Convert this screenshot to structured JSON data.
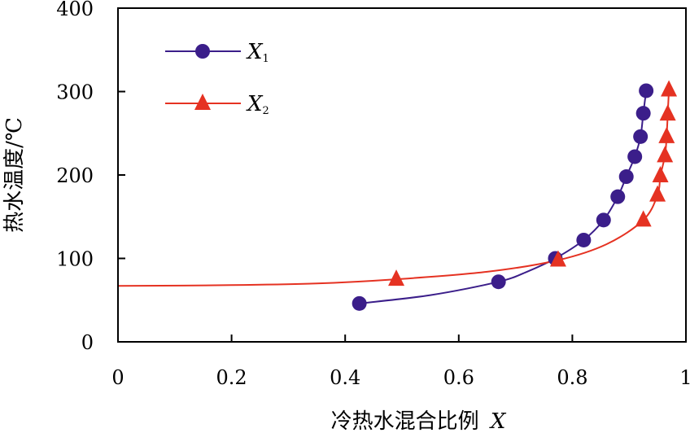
{
  "chart_data": {
    "type": "line",
    "xlabel": "冷热水混合比例",
    "xlabel_var": "X",
    "ylabel": "热水温度/℃",
    "xlim": [
      0,
      1
    ],
    "ylim": [
      0,
      400
    ],
    "xticks": [
      0,
      0.2,
      0.4,
      0.6,
      0.8,
      1
    ],
    "xtick_labels": [
      "0",
      "0.2",
      "0.4",
      "0.6",
      "0.8",
      "1"
    ],
    "yticks": [
      0,
      100,
      200,
      300,
      400
    ],
    "ytick_labels": [
      "0",
      "100",
      "200",
      "300",
      "400"
    ],
    "grid": false,
    "legend_position": "top-left",
    "series": [
      {
        "name": "X1",
        "label_main": "X",
        "label_sub": "1",
        "color": "#3b1e8a",
        "marker": "circle",
        "points": [
          {
            "x": 0.425,
            "y": 46
          },
          {
            "x": 0.67,
            "y": 72
          },
          {
            "x": 0.77,
            "y": 100
          },
          {
            "x": 0.82,
            "y": 122
          },
          {
            "x": 0.855,
            "y": 146
          },
          {
            "x": 0.88,
            "y": 174
          },
          {
            "x": 0.895,
            "y": 198
          },
          {
            "x": 0.91,
            "y": 222
          },
          {
            "x": 0.92,
            "y": 246
          },
          {
            "x": 0.925,
            "y": 274
          },
          {
            "x": 0.93,
            "y": 301
          }
        ],
        "curve": [
          {
            "x": 0.425,
            "y": 46
          },
          {
            "x": 0.55,
            "y": 56
          },
          {
            "x": 0.67,
            "y": 72
          },
          {
            "x": 0.72,
            "y": 84
          },
          {
            "x": 0.77,
            "y": 100
          },
          {
            "x": 0.82,
            "y": 122
          },
          {
            "x": 0.855,
            "y": 146
          },
          {
            "x": 0.88,
            "y": 174
          },
          {
            "x": 0.895,
            "y": 198
          },
          {
            "x": 0.91,
            "y": 222
          },
          {
            "x": 0.92,
            "y": 246
          },
          {
            "x": 0.925,
            "y": 274
          },
          {
            "x": 0.93,
            "y": 301
          }
        ]
      },
      {
        "name": "X2",
        "label_main": "X",
        "label_sub": "2",
        "color": "#e53222",
        "marker": "triangle",
        "points": [
          {
            "x": 0.49,
            "y": 75
          },
          {
            "x": 0.775,
            "y": 98
          },
          {
            "x": 0.925,
            "y": 146
          },
          {
            "x": 0.95,
            "y": 176
          },
          {
            "x": 0.955,
            "y": 199
          },
          {
            "x": 0.963,
            "y": 223
          },
          {
            "x": 0.966,
            "y": 246
          },
          {
            "x": 0.968,
            "y": 273
          },
          {
            "x": 0.97,
            "y": 302
          }
        ],
        "curve": [
          {
            "x": 0,
            "y": 67
          },
          {
            "x": 0.2,
            "y": 68
          },
          {
            "x": 0.35,
            "y": 70
          },
          {
            "x": 0.49,
            "y": 75
          },
          {
            "x": 0.65,
            "y": 84
          },
          {
            "x": 0.775,
            "y": 98
          },
          {
            "x": 0.86,
            "y": 117
          },
          {
            "x": 0.925,
            "y": 146
          },
          {
            "x": 0.95,
            "y": 176
          },
          {
            "x": 0.955,
            "y": 199
          },
          {
            "x": 0.963,
            "y": 223
          },
          {
            "x": 0.966,
            "y": 246
          },
          {
            "x": 0.968,
            "y": 273
          },
          {
            "x": 0.97,
            "y": 302
          }
        ]
      }
    ]
  }
}
